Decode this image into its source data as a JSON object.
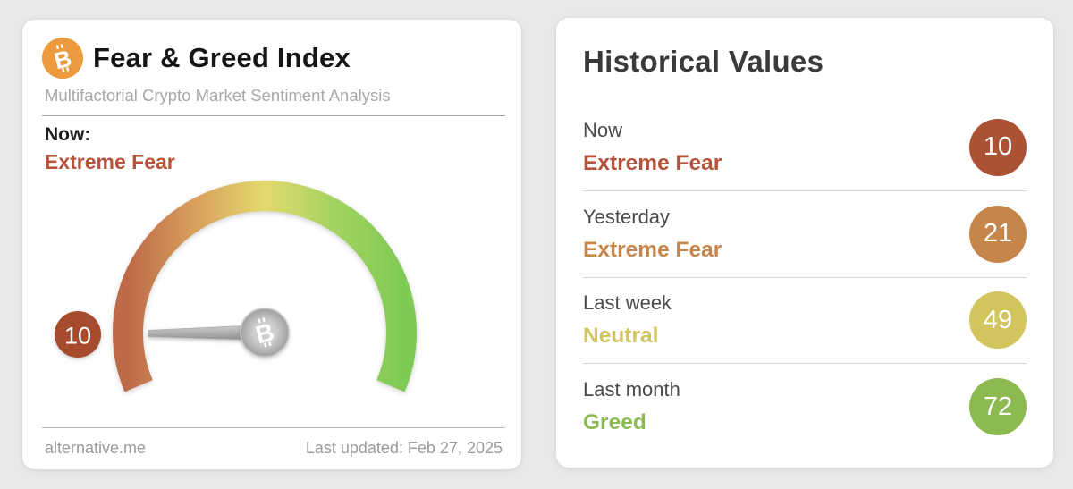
{
  "page_background": "#e9e9eb",
  "gauge_card": {
    "title": "Fear & Greed Index",
    "subtitle": "Multifactorial Crypto Market Sentiment Analysis",
    "icon_color": "#ec9a3d",
    "now_label": "Now:",
    "now_classification": "Extreme Fear",
    "now_color": "#b5523a",
    "gauge": {
      "value": "10",
      "min": 0,
      "max": 100,
      "badge_color": "#a74b2f",
      "arc_colors": [
        "#bd6a48",
        "#d89e5c",
        "#e3da6c",
        "#a6d462",
        "#7fca54"
      ],
      "needle_color": "#9a9a9a"
    },
    "footer": {
      "source": "alternative.me",
      "last_updated": "Last updated: Feb 27, 2025"
    }
  },
  "history_card": {
    "title": "Historical Values",
    "rows": [
      {
        "label": "Now",
        "classification": "Extreme Fear",
        "value": "10",
        "color": "#b5523a",
        "badge_color": "#ab5134"
      },
      {
        "label": "Yesterday",
        "classification": "Extreme Fear",
        "value": "21",
        "color": "#c6854a",
        "badge_color": "#c6854a"
      },
      {
        "label": "Last week",
        "classification": "Neutral",
        "value": "49",
        "color": "#d2c55e",
        "badge_color": "#d2c55e"
      },
      {
        "label": "Last month",
        "classification": "Greed",
        "value": "72",
        "color": "#8cba50",
        "badge_color": "#8cba50"
      }
    ]
  }
}
